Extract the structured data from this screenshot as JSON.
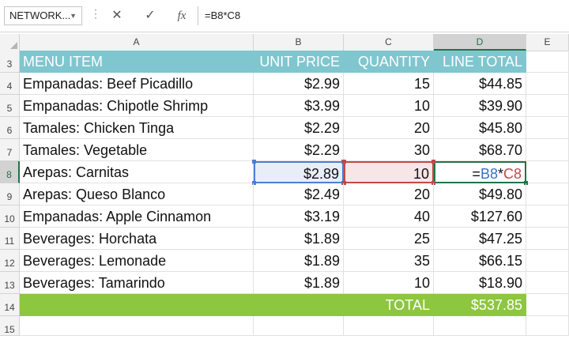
{
  "formula_bar": {
    "name_box": "NETWORK...",
    "cancel_icon": "x-icon",
    "enter_icon": "check-icon",
    "fx_label": "fx",
    "formula": "=B8*C8"
  },
  "columns": [
    "A",
    "B",
    "C",
    "D",
    "E"
  ],
  "selected_column": "D",
  "rows": [
    3,
    4,
    5,
    6,
    7,
    8,
    9,
    10,
    11,
    12,
    13,
    14,
    15
  ],
  "selected_row": 8,
  "header": {
    "menu_item": "MENU ITEM",
    "unit_price": "UNIT PRICE",
    "quantity": "QUANTITY",
    "line_total": "LINE TOTAL"
  },
  "items": [
    {
      "row": 4,
      "name": "Empanadas: Beef Picadillo",
      "price": "$2.99",
      "qty": "15",
      "total": "$44.85"
    },
    {
      "row": 5,
      "name": "Empanadas: Chipotle Shrimp",
      "price": "$3.99",
      "qty": "10",
      "total": "$39.90"
    },
    {
      "row": 6,
      "name": "Tamales: Chicken Tinga",
      "price": "$2.29",
      "qty": "20",
      "total": "$45.80"
    },
    {
      "row": 7,
      "name": "Tamales: Vegetable",
      "price": "$2.29",
      "qty": "30",
      "total": "$68.70"
    },
    {
      "row": 8,
      "name": "Arepas: Carnitas",
      "price": "$2.89",
      "qty": "10",
      "total": ""
    },
    {
      "row": 9,
      "name": "Arepas: Queso Blanco",
      "price": "$2.49",
      "qty": "20",
      "total": "$49.80"
    },
    {
      "row": 10,
      "name": "Empanadas: Apple Cinnamon",
      "price": "$3.19",
      "qty": "40",
      "total": "$127.60"
    },
    {
      "row": 11,
      "name": "Beverages: Horchata",
      "price": "$1.89",
      "qty": "25",
      "total": "$47.25"
    },
    {
      "row": 12,
      "name": "Beverages: Lemonade",
      "price": "$1.89",
      "qty": "35",
      "total": "$66.15"
    },
    {
      "row": 13,
      "name": "Beverages: Tamarindo",
      "price": "$1.89",
      "qty": "10",
      "total": "$18.90"
    }
  ],
  "editing_cell": {
    "prefix": "=",
    "ref_b": "B8",
    "operator": "*",
    "ref_c": "C8"
  },
  "total_row": {
    "label": "TOTAL",
    "value": "$537.85"
  },
  "colors": {
    "header_fill": "#7fc6cf",
    "total_fill": "#8dc63f",
    "ref_b": "#4a7fd1",
    "ref_c": "#c04a4a",
    "active": "#217346"
  }
}
